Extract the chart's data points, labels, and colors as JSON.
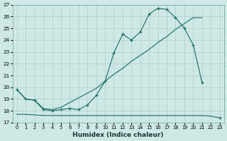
{
  "xlabel": "Humidex (Indice chaleur)",
  "x": [
    0,
    1,
    2,
    3,
    4,
    5,
    6,
    7,
    8,
    9,
    10,
    11,
    12,
    13,
    14,
    15,
    16,
    17,
    18,
    19,
    20,
    21,
    22,
    23
  ],
  "y_main": [
    19.8,
    19.0,
    18.9,
    18.1,
    18.0,
    18.1,
    18.2,
    18.1,
    18.5,
    19.3,
    20.5,
    22.9,
    24.5,
    24.0,
    24.7,
    26.2,
    26.7,
    26.6,
    25.9,
    25.0,
    23.6,
    20.4,
    null,
    null
  ],
  "y_trend": [
    19.8,
    19.0,
    18.9,
    18.2,
    18.1,
    18.3,
    18.7,
    19.1,
    19.5,
    19.9,
    20.5,
    21.1,
    21.6,
    22.2,
    22.7,
    23.2,
    23.8,
    24.3,
    24.9,
    25.4,
    25.9,
    25.9,
    null,
    null
  ],
  "y_flat": [
    17.7,
    17.7,
    17.65,
    17.6,
    17.6,
    17.6,
    17.6,
    17.6,
    17.6,
    17.6,
    17.6,
    17.6,
    17.6,
    17.6,
    17.6,
    17.6,
    17.6,
    17.6,
    17.6,
    17.6,
    17.6,
    17.6,
    17.55,
    17.4
  ],
  "bg_color": "#cde8e5",
  "line_color": "#1b6b65",
  "grid_color": "#a8d0cc",
  "ylim": [
    17,
    27
  ],
  "xlim": [
    -0.5,
    23.5
  ],
  "yticks": [
    17,
    18,
    19,
    20,
    21,
    22,
    23,
    24,
    25,
    26,
    27
  ],
  "xticks": [
    0,
    1,
    2,
    3,
    4,
    5,
    6,
    7,
    8,
    9,
    10,
    11,
    12,
    13,
    14,
    15,
    16,
    17,
    18,
    19,
    20,
    21,
    22,
    23
  ]
}
